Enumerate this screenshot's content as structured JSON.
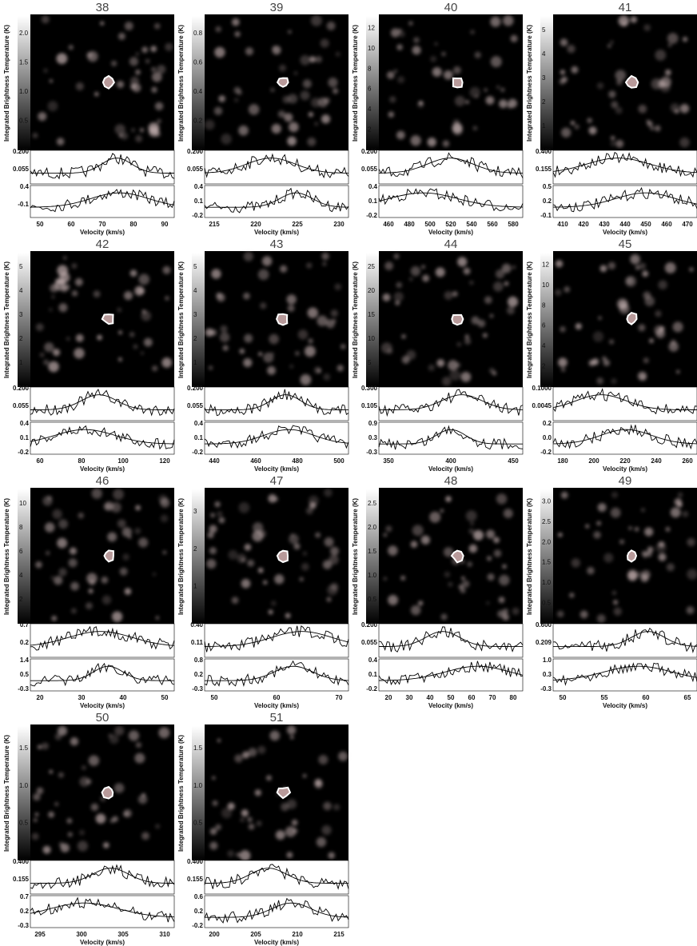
{
  "common": {
    "colorbar_label": "Integrated Brightness Temperature (K)",
    "x_label": "Velocity (km/s)"
  },
  "panels": [
    {
      "title": "38",
      "colorbar_ticks": [
        "0.5",
        "1.0",
        "1.5",
        "2.0"
      ],
      "spectrum_ticks": [
        "0.200",
        "0.055"
      ],
      "residual_ticks": [
        "0.4",
        "-0.1"
      ],
      "x_ticks": [
        "50",
        "60",
        "70",
        "80",
        "90"
      ]
    },
    {
      "title": "39",
      "colorbar_ticks": [
        "0.2",
        "0.4",
        "0.6",
        "0.8"
      ],
      "spectrum_ticks": [
        "0.200",
        "0.055"
      ],
      "residual_ticks": [
        "0.4",
        "0.1",
        "-0.2"
      ],
      "x_ticks": [
        "215",
        "220",
        "225",
        "230"
      ]
    },
    {
      "title": "40",
      "colorbar_ticks": [
        "2",
        "4",
        "6",
        "8",
        "10",
        "12"
      ],
      "spectrum_ticks": [
        "0.200",
        "0.055"
      ],
      "residual_ticks": [
        "0.4",
        "0.1",
        "-0.2"
      ],
      "x_ticks": [
        "460",
        "480",
        "500",
        "520",
        "540",
        "560",
        "580"
      ]
    },
    {
      "title": "41",
      "colorbar_ticks": [
        "1",
        "2",
        "3",
        "4",
        "5"
      ],
      "spectrum_ticks": [
        "0.400",
        "0.155"
      ],
      "residual_ticks": [
        "0.5",
        "0.2",
        "-0.1"
      ],
      "x_ticks": [
        "410",
        "420",
        "430",
        "440",
        "450",
        "460",
        "470"
      ]
    },
    {
      "title": "42",
      "colorbar_ticks": [
        "1",
        "2",
        "3",
        "4",
        "5"
      ],
      "spectrum_ticks": [
        "0.200",
        "0.055"
      ],
      "residual_ticks": [
        "0.4",
        "0.1",
        "-0.2"
      ],
      "x_ticks": [
        "60",
        "80",
        "100",
        "120"
      ]
    },
    {
      "title": "43",
      "colorbar_ticks": [
        "1",
        "2",
        "3",
        "4",
        "5"
      ],
      "spectrum_ticks": [
        "0.200",
        "0.055"
      ],
      "residual_ticks": [
        "0.4",
        "0.1",
        "-0.2"
      ],
      "x_ticks": [
        "440",
        "460",
        "480",
        "500"
      ]
    },
    {
      "title": "44",
      "colorbar_ticks": [
        "5",
        "10",
        "15",
        "20",
        "25"
      ],
      "spectrum_ticks": [
        "0.300",
        "0.105"
      ],
      "residual_ticks": [
        "0.9",
        "0.3",
        "-0.3"
      ],
      "x_ticks": [
        "350",
        "400",
        "450"
      ]
    },
    {
      "title": "45",
      "colorbar_ticks": [
        "2",
        "4",
        "6",
        "8",
        "10",
        "12"
      ],
      "spectrum_ticks": [
        "0.1000",
        "0.0045"
      ],
      "residual_ticks": [
        "0.2",
        "0.0",
        "-0.2"
      ],
      "x_ticks": [
        "180",
        "200",
        "220",
        "240",
        "260"
      ]
    },
    {
      "title": "46",
      "colorbar_ticks": [
        "2",
        "4",
        "6",
        "8",
        "10"
      ],
      "spectrum_ticks": [
        "0.7",
        "0.2"
      ],
      "residual_ticks": [
        "1.4",
        "0.5",
        "-0.3"
      ],
      "x_ticks": [
        "20",
        "30",
        "40",
        "50"
      ]
    },
    {
      "title": "47",
      "colorbar_ticks": [
        "1",
        "2",
        "3"
      ],
      "spectrum_ticks": [
        "0.40",
        "0.11"
      ],
      "residual_ticks": [
        "0.8",
        "0.2",
        "-0.3"
      ],
      "x_ticks": [
        "50",
        "60",
        "70"
      ]
    },
    {
      "title": "48",
      "colorbar_ticks": [
        "0.5",
        "1.0",
        "1.5",
        "2.0",
        "2.5"
      ],
      "spectrum_ticks": [
        "0.200",
        "0.055"
      ],
      "residual_ticks": [
        "0.4",
        "0.1",
        "-0.2"
      ],
      "x_ticks": [
        "20",
        "30",
        "40",
        "50",
        "60",
        "70",
        "80"
      ]
    },
    {
      "title": "49",
      "colorbar_ticks": [
        "0.5",
        "1.0",
        "1.5",
        "2.0",
        "2.5",
        "3.0"
      ],
      "spectrum_ticks": [
        "0.600",
        "0.209"
      ],
      "residual_ticks": [
        "1.0",
        "0.3",
        "-0.3"
      ],
      "x_ticks": [
        "50",
        "55",
        "60",
        "65"
      ]
    },
    {
      "title": "50",
      "colorbar_ticks": [
        "0.5",
        "1.0",
        "1.5"
      ],
      "spectrum_ticks": [
        "0.400",
        "0.155"
      ],
      "residual_ticks": [
        "0.7",
        "0.2",
        "-0.3"
      ],
      "x_ticks": [
        "295",
        "300",
        "305",
        "310"
      ]
    },
    {
      "title": "51",
      "colorbar_ticks": [
        "0.5",
        "1.0",
        "1.5"
      ],
      "spectrum_ticks": [
        "0.400",
        "0.155"
      ],
      "residual_ticks": [
        "0.6",
        "0.2",
        "-0.2"
      ],
      "x_ticks": [
        "200",
        "205",
        "210",
        "215"
      ]
    }
  ]
}
